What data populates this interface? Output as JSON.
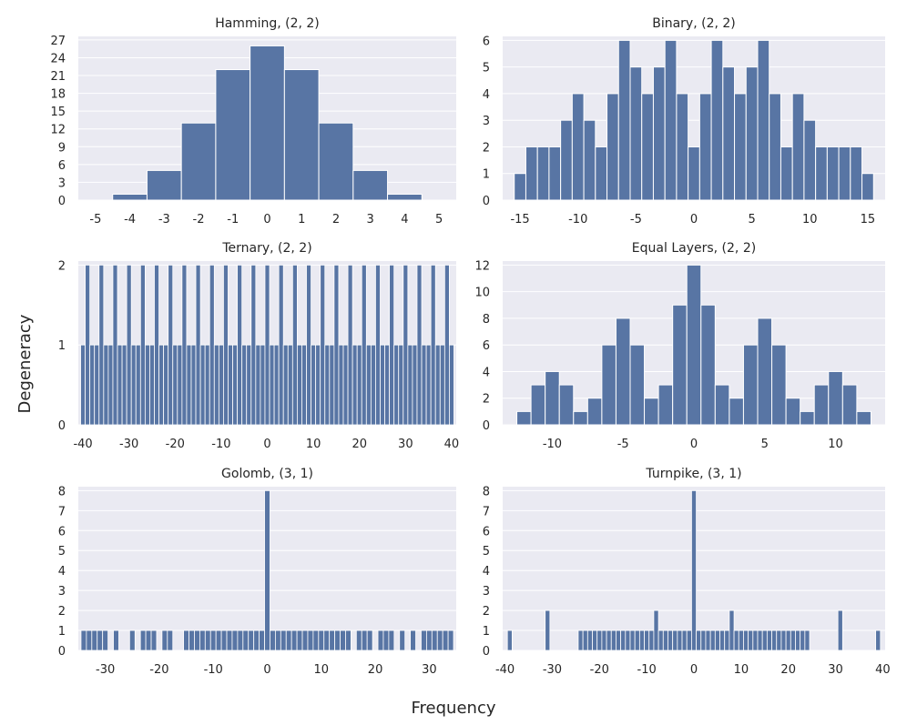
{
  "figure": {
    "xlabel": "Frequency",
    "ylabel": "Degeneracy"
  },
  "colors": {
    "bar": "#5875a4",
    "panel": "#eaeaf2",
    "grid": "#ffffff",
    "text": "#262626"
  },
  "chart_data": [
    {
      "type": "bar",
      "title": "Hamming, (2, 2)",
      "xlim": [
        -5.5,
        5.5
      ],
      "ylim": [
        0,
        27.6
      ],
      "xticks": [
        -5,
        -4,
        -3,
        -2,
        -1,
        0,
        1,
        2,
        3,
        4,
        5
      ],
      "yticks": [
        0,
        3,
        6,
        9,
        12,
        15,
        18,
        21,
        24,
        27
      ],
      "x": [
        -4,
        -3,
        -2,
        -1,
        0,
        1,
        2,
        3,
        4
      ],
      "values": [
        1,
        5,
        13,
        22,
        26,
        22,
        13,
        5,
        1
      ]
    },
    {
      "type": "bar",
      "title": "Binary, (2, 2)",
      "xlim": [
        -16.5,
        16.5
      ],
      "ylim": [
        0,
        6.15
      ],
      "xticks": [
        -15,
        -10,
        -5,
        0,
        5,
        10,
        15
      ],
      "yticks": [
        0,
        1,
        2,
        3,
        4,
        5,
        6
      ],
      "x": [
        -15,
        -14,
        -13,
        -12,
        -11,
        -10,
        -9,
        -8,
        -7,
        -6,
        -5,
        -4,
        -3,
        -2,
        -1,
        0,
        1,
        2,
        3,
        4,
        5,
        6,
        7,
        8,
        9,
        10,
        11,
        12,
        13,
        14,
        15
      ],
      "values": [
        1,
        2,
        2,
        2,
        3,
        4,
        3,
        2,
        4,
        6,
        5,
        4,
        5,
        6,
        4,
        2,
        4,
        6,
        5,
        4,
        5,
        6,
        4,
        2,
        4,
        3,
        2,
        2,
        2,
        2,
        1
      ]
    },
    {
      "type": "bar",
      "title": "Ternary, (2, 2)",
      "xlim": [
        -41,
        41
      ],
      "ylim": [
        0,
        2.05
      ],
      "xticks": [
        -40,
        -30,
        -20,
        -10,
        0,
        10,
        20,
        30,
        40
      ],
      "yticks": [
        0,
        1,
        2
      ],
      "x": [
        -40,
        -39,
        -38,
        -37,
        -36,
        -35,
        -34,
        -33,
        -32,
        -31,
        -30,
        -29,
        -28,
        -27,
        -26,
        -25,
        -24,
        -23,
        -22,
        -21,
        -20,
        -19,
        -18,
        -17,
        -16,
        -15,
        -14,
        -13,
        -12,
        -11,
        -10,
        -9,
        -8,
        -7,
        -6,
        -5,
        -4,
        -3,
        -2,
        -1,
        0,
        1,
        2,
        3,
        4,
        5,
        6,
        7,
        8,
        9,
        10,
        11,
        12,
        13,
        14,
        15,
        16,
        17,
        18,
        19,
        20,
        21,
        22,
        23,
        24,
        25,
        26,
        27,
        28,
        29,
        30,
        31,
        32,
        33,
        34,
        35,
        36,
        37,
        38,
        39,
        40
      ],
      "values": [
        1,
        2,
        1,
        1,
        2,
        1,
        1,
        2,
        1,
        1,
        2,
        1,
        1,
        2,
        1,
        1,
        2,
        1,
        1,
        2,
        1,
        1,
        2,
        1,
        1,
        2,
        1,
        1,
        2,
        1,
        1,
        2,
        1,
        1,
        2,
        1,
        1,
        2,
        1,
        1,
        2,
        1,
        1,
        2,
        1,
        1,
        2,
        1,
        1,
        2,
        1,
        1,
        2,
        1,
        1,
        2,
        1,
        1,
        2,
        1,
        1,
        2,
        1,
        1,
        2,
        1,
        1,
        2,
        1,
        1,
        2,
        1,
        1,
        2,
        1,
        1,
        2,
        1,
        1,
        2,
        1
      ]
    },
    {
      "type": "bar",
      "title": "Equal Layers, (2, 2)",
      "xlim": [
        -13.5,
        13.5
      ],
      "ylim": [
        0,
        12.3
      ],
      "xticks": [
        -10,
        -5,
        0,
        5,
        10
      ],
      "yticks": [
        0,
        2,
        4,
        6,
        8,
        10,
        12
      ],
      "x": [
        -12,
        -11,
        -10,
        -9,
        -8,
        -7,
        -6,
        -5,
        -4,
        -3,
        -2,
        -1,
        0,
        1,
        2,
        3,
        4,
        5,
        6,
        7,
        8,
        9,
        10,
        11,
        12
      ],
      "values": [
        1,
        3,
        4,
        3,
        1,
        2,
        6,
        8,
        6,
        2,
        3,
        9,
        12,
        9,
        3,
        2,
        6,
        8,
        6,
        2,
        1,
        3,
        4,
        3,
        1
      ]
    },
    {
      "type": "bar",
      "title": "Golomb, (3, 1)",
      "xlim": [
        -35,
        35
      ],
      "ylim": [
        0,
        8.2
      ],
      "xticks": [
        -30,
        -20,
        -10,
        0,
        10,
        20,
        30
      ],
      "yticks": [
        0,
        1,
        2,
        3,
        4,
        5,
        6,
        7,
        8
      ],
      "x": [
        -34,
        -33,
        -32,
        -31,
        -30,
        -28,
        -25,
        -23,
        -22,
        -21,
        -19,
        -18,
        -15,
        -14,
        -13,
        -12,
        -11,
        -10,
        -9,
        -8,
        -7,
        -6,
        -5,
        -4,
        -3,
        -2,
        -1,
        0,
        1,
        2,
        3,
        4,
        5,
        6,
        7,
        8,
        9,
        10,
        11,
        12,
        13,
        14,
        15,
        17,
        18,
        19,
        21,
        22,
        23,
        25,
        27,
        29,
        30,
        31,
        32,
        33,
        34
      ],
      "values": [
        1,
        1,
        1,
        1,
        1,
        1,
        1,
        1,
        1,
        1,
        1,
        1,
        1,
        1,
        1,
        1,
        1,
        1,
        1,
        1,
        1,
        1,
        1,
        1,
        1,
        1,
        1,
        8,
        1,
        1,
        1,
        1,
        1,
        1,
        1,
        1,
        1,
        1,
        1,
        1,
        1,
        1,
        1,
        1,
        1,
        1,
        1,
        1,
        1,
        1,
        1,
        1,
        1,
        1,
        1,
        1,
        1
      ]
    },
    {
      "type": "bar",
      "title": "Turnpike, (3, 1)",
      "xlim": [
        -40.5,
        40.5
      ],
      "ylim": [
        0,
        8.2
      ],
      "xticks": [
        -40,
        -30,
        -20,
        -10,
        0,
        10,
        20,
        30,
        40
      ],
      "yticks": [
        0,
        1,
        2,
        3,
        4,
        5,
        6,
        7,
        8
      ],
      "x": [
        -39,
        -31,
        -24,
        -23,
        -22,
        -21,
        -20,
        -19,
        -18,
        -17,
        -16,
        -15,
        -14,
        -13,
        -12,
        -11,
        -10,
        -9,
        -8,
        -7,
        -6,
        -5,
        -4,
        -3,
        -2,
        -1,
        0,
        1,
        2,
        3,
        4,
        5,
        6,
        7,
        8,
        9,
        10,
        11,
        12,
        13,
        14,
        15,
        16,
        17,
        18,
        19,
        20,
        21,
        22,
        23,
        24,
        31,
        39
      ],
      "values": [
        1,
        2,
        1,
        1,
        1,
        1,
        1,
        1,
        1,
        1,
        1,
        1,
        1,
        1,
        1,
        1,
        1,
        1,
        2,
        1,
        1,
        1,
        1,
        1,
        1,
        1,
        8,
        1,
        1,
        1,
        1,
        1,
        1,
        1,
        2,
        1,
        1,
        1,
        1,
        1,
        1,
        1,
        1,
        1,
        1,
        1,
        1,
        1,
        1,
        1,
        1,
        2,
        1
      ]
    }
  ]
}
